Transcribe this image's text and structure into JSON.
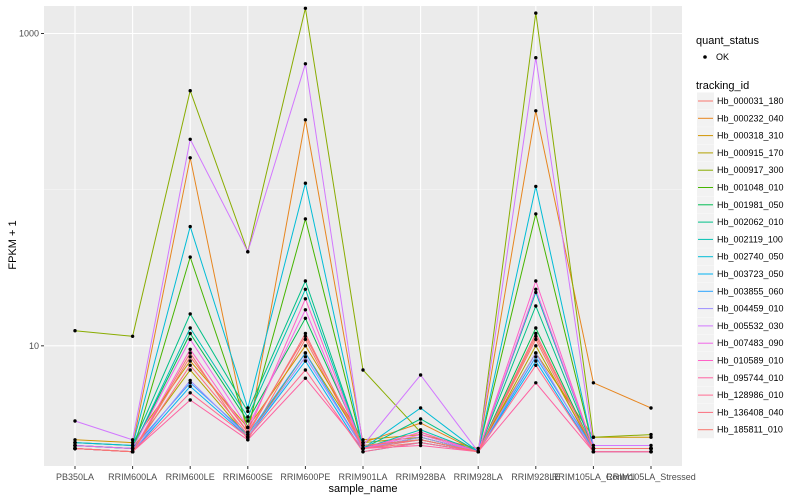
{
  "chart_data": {
    "type": "line",
    "xlabel": "sample_name",
    "ylabel": "FPKM + 1",
    "y_scale": "log10",
    "y_ticks": [
      10,
      1000
    ],
    "ylim": [
      1.7,
      1500
    ],
    "grid": true,
    "legend_placement": "right",
    "categories": [
      "PB350LA",
      "RRIM600LA",
      "RRIM600LE",
      "RRIM600SE",
      "RRIM600PE",
      "RRIM901LA",
      "RRIM928BA",
      "RRIM928LA",
      "RRIM928LE",
      "RRIM105LA_Control",
      "RRIM105LA_Stressed"
    ],
    "quant_status_legend": {
      "title": "quant_status",
      "entries": [
        "OK"
      ]
    },
    "legend_title": "tracking_id",
    "series": [
      {
        "name": "Hb_000031_180",
        "color": "#F8766D",
        "values": [
          2.2,
          2.1,
          9.0,
          2.5,
          11.0,
          2.2,
          2.4,
          2.1,
          11.0,
          2.1,
          2.1
        ]
      },
      {
        "name": "Hb_000232_040",
        "color": "#E7851E",
        "values": [
          2.4,
          2.3,
          160,
          2.6,
          280,
          2.4,
          3.2,
          2.1,
          320,
          5.8,
          4.0
        ]
      },
      {
        "name": "Hb_000318_310",
        "color": "#D09400",
        "values": [
          2.5,
          2.4,
          8.0,
          3.0,
          10.0,
          2.5,
          2.7,
          2.2,
          9.0,
          2.6,
          2.6
        ]
      },
      {
        "name": "Hb_000915_170",
        "color": "#B2A100",
        "values": [
          2.3,
          2.2,
          7.0,
          2.6,
          9.0,
          2.4,
          2.6,
          2.1,
          10.0,
          2.2,
          2.2
        ]
      },
      {
        "name": "Hb_000917_300",
        "color": "#89AC00",
        "values": [
          12.5,
          11.5,
          430,
          40,
          1450,
          7.0,
          2.8,
          2.1,
          1350,
          2.6,
          2.7
        ]
      },
      {
        "name": "Hb_001048_010",
        "color": "#45B500",
        "values": [
          2.2,
          2.1,
          37,
          3.0,
          65,
          2.2,
          2.6,
          2.1,
          70,
          2.2,
          2.2
        ]
      },
      {
        "name": "Hb_001981_050",
        "color": "#00BC51",
        "values": [
          2.3,
          2.2,
          12.0,
          3.3,
          15.0,
          2.3,
          2.5,
          2.1,
          13.0,
          2.2,
          2.2
        ]
      },
      {
        "name": "Hb_002062_010",
        "color": "#00C087",
        "values": [
          2.4,
          2.3,
          16,
          3.8,
          26,
          2.2,
          3.4,
          2.1,
          18,
          2.2,
          2.2
        ]
      },
      {
        "name": "Hb_002119_100",
        "color": "#00C0B2",
        "values": [
          2.3,
          2.2,
          13,
          3.5,
          23,
          2.2,
          2.9,
          2.1,
          22,
          2.2,
          2.2
        ]
      },
      {
        "name": "Hb_002740_050",
        "color": "#00BCD6",
        "values": [
          2.4,
          2.3,
          58,
          4.0,
          110,
          2.2,
          4.0,
          2.1,
          105,
          2.2,
          2.2
        ]
      },
      {
        "name": "Hb_003723_050",
        "color": "#00B3F2",
        "values": [
          2.2,
          2.1,
          5.5,
          2.6,
          8.0,
          2.1,
          2.4,
          2.1,
          8.0,
          2.1,
          2.1
        ]
      },
      {
        "name": "Hb_003855_060",
        "color": "#29A3FF",
        "values": [
          2.3,
          2.2,
          5.8,
          2.7,
          9.0,
          2.2,
          2.5,
          2.1,
          8.5,
          2.2,
          2.2
        ]
      },
      {
        "name": "Hb_004459_010",
        "color": "#9C8DFF",
        "values": [
          2.2,
          2.1,
          6.0,
          2.6,
          8.5,
          2.2,
          2.6,
          2.1,
          9.0,
          2.1,
          2.1
        ]
      },
      {
        "name": "Hb_005532_030",
        "color": "#D277FF",
        "values": [
          3.3,
          2.5,
          210,
          40,
          640,
          2.3,
          6.5,
          2.1,
          700,
          2.3,
          2.3
        ]
      },
      {
        "name": "Hb_007483_090",
        "color": "#F166E8",
        "values": [
          2.3,
          2.2,
          11,
          3.0,
          17,
          2.2,
          2.7,
          2.1,
          23,
          2.2,
          2.2
        ]
      },
      {
        "name": "Hb_010589_010",
        "color": "#FF61C7",
        "values": [
          2.2,
          2.1,
          9.5,
          2.8,
          20,
          2.2,
          2.8,
          2.1,
          26,
          2.2,
          2.2
        ]
      },
      {
        "name": "Hb_095744_010",
        "color": "#FF62A2",
        "values": [
          2.2,
          2.1,
          4.5,
          2.5,
          6.2,
          2.2,
          2.3,
          2.1,
          5.8,
          2.1,
          2.1
        ]
      },
      {
        "name": "Hb_128986_010",
        "color": "#FF6C91",
        "values": [
          2.2,
          2.1,
          5.0,
          2.6,
          7.0,
          2.1,
          2.4,
          2.1,
          7.5,
          2.1,
          2.1
        ]
      },
      {
        "name": "Hb_136408_040",
        "color": "#FB6F7E",
        "values": [
          2.2,
          2.1,
          7.5,
          2.7,
          12.0,
          2.2,
          2.5,
          2.1,
          12.0,
          2.2,
          2.2
        ]
      },
      {
        "name": "Hb_185811_010",
        "color": "#F8766D",
        "values": [
          2.2,
          2.1,
          8.5,
          2.8,
          11.5,
          2.3,
          2.5,
          2.1,
          11.5,
          2.2,
          2.2
        ]
      }
    ]
  }
}
